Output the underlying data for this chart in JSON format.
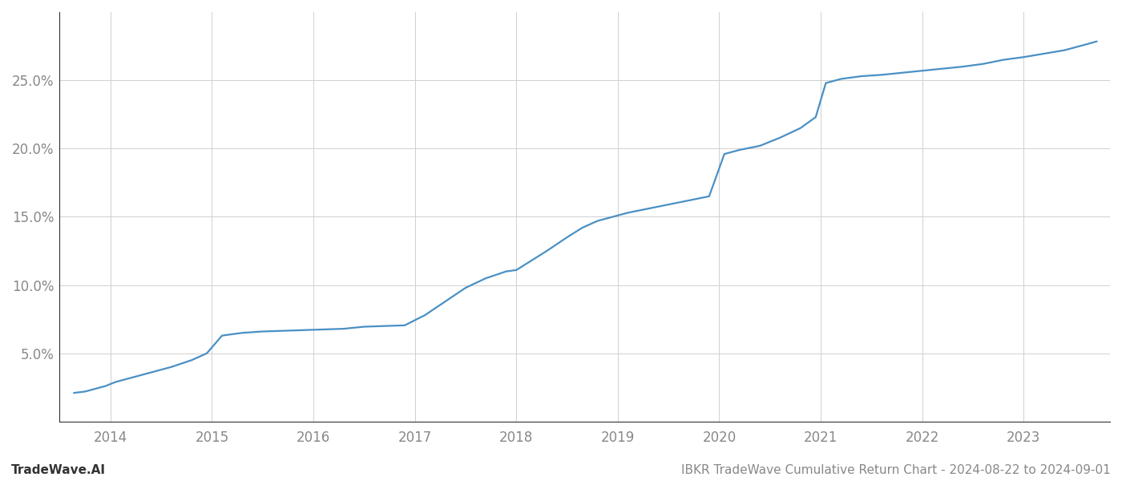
{
  "title": "IBKR TradeWave Cumulative Return Chart - 2024-08-22 to 2024-09-01",
  "watermark": "TradeWave.AI",
  "line_color": "#4a90c4",
  "background_color": "#ffffff",
  "grid_color": "#d0d0d0",
  "x_values": [
    2013.64,
    2013.75,
    2013.85,
    2013.95,
    2014.05,
    2014.2,
    2014.4,
    2014.6,
    2014.8,
    2014.95,
    2015.1,
    2015.3,
    2015.5,
    2015.7,
    2015.9,
    2016.1,
    2016.3,
    2016.5,
    2016.7,
    2016.9,
    2017.1,
    2017.3,
    2017.5,
    2017.7,
    2017.9,
    2018.0,
    2018.15,
    2018.3,
    2018.5,
    2018.65,
    2018.8,
    2018.95,
    2019.1,
    2019.3,
    2019.5,
    2019.7,
    2019.9,
    2020.05,
    2020.2,
    2020.4,
    2020.6,
    2020.8,
    2020.95,
    2021.05,
    2021.2,
    2021.4,
    2021.6,
    2021.8,
    2022.0,
    2022.2,
    2022.4,
    2022.6,
    2022.8,
    2023.0,
    2023.2,
    2023.4,
    2023.6,
    2023.72
  ],
  "y_values": [
    2.1,
    2.2,
    2.4,
    2.6,
    2.9,
    3.2,
    3.6,
    4.0,
    4.5,
    5.0,
    6.3,
    6.5,
    6.6,
    6.65,
    6.7,
    6.75,
    6.8,
    6.95,
    7.0,
    7.05,
    7.8,
    8.8,
    9.8,
    10.5,
    11.0,
    11.1,
    11.8,
    12.5,
    13.5,
    14.2,
    14.7,
    15.0,
    15.3,
    15.6,
    15.9,
    16.2,
    16.5,
    19.6,
    19.9,
    20.2,
    20.8,
    21.5,
    22.3,
    24.8,
    25.1,
    25.3,
    25.4,
    25.55,
    25.7,
    25.85,
    26.0,
    26.2,
    26.5,
    26.7,
    26.95,
    27.2,
    27.6,
    27.85
  ],
  "xlim": [
    2013.5,
    2023.85
  ],
  "ylim": [
    0,
    30
  ],
  "xticks": [
    2014,
    2015,
    2016,
    2017,
    2018,
    2019,
    2020,
    2021,
    2022,
    2023
  ],
  "yticks": [
    5.0,
    10.0,
    15.0,
    20.0,
    25.0
  ],
  "ytick_labels": [
    "5.0%",
    "10.0%",
    "15.0%",
    "20.0%",
    "25.0%"
  ],
  "line_width": 1.6,
  "tick_label_fontsize": 12,
  "footer_fontsize": 11,
  "axis_color": "#888888",
  "spine_color": "#333333"
}
